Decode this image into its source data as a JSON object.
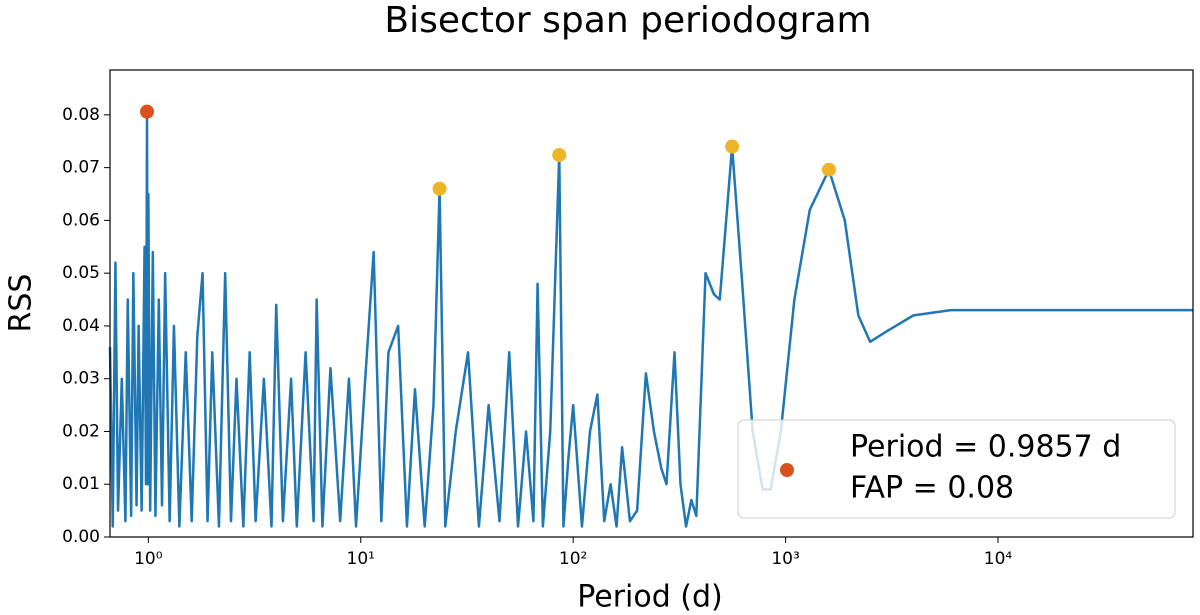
{
  "chart_data": {
    "type": "line",
    "title": "Bisector span periodogram",
    "xlabel": "Period (d)",
    "ylabel": "RSS",
    "xscale": "log",
    "xlim": [
      0.66,
      82800
    ],
    "ylim": [
      0,
      0.0885
    ],
    "xticks": [
      {
        "value": 1,
        "label": "10⁰"
      },
      {
        "value": 10,
        "label": "10¹"
      },
      {
        "value": 100,
        "label": "10²"
      },
      {
        "value": 1000,
        "label": "10³"
      },
      {
        "value": 10000,
        "label": "10⁴"
      }
    ],
    "yticks": [
      {
        "value": 0,
        "label": "0.00"
      },
      0.01,
      0.02,
      0.03,
      0.04,
      0.05,
      0.06,
      0.07,
      0.08
    ],
    "series": [
      {
        "color": "#1f77b4",
        "x": [
          0.66,
          0.68,
          0.7,
          0.72,
          0.75,
          0.78,
          0.8,
          0.83,
          0.85,
          0.88,
          0.9,
          0.93,
          0.96,
          0.975,
          0.9857,
          0.995,
          1.0,
          1.02,
          1.05,
          1.08,
          1.12,
          1.16,
          1.2,
          1.26,
          1.32,
          1.4,
          1.5,
          1.6,
          1.7,
          1.8,
          1.9,
          2.0,
          2.15,
          2.3,
          2.45,
          2.6,
          2.8,
          3.0,
          3.2,
          3.5,
          3.8,
          4.0,
          4.3,
          4.7,
          5.0,
          5.5,
          6.0,
          6.2,
          6.6,
          7.2,
          8.0,
          8.8,
          9.5,
          10.5,
          11.5,
          12.5,
          13.5,
          15,
          16.5,
          18,
          20,
          22,
          23.5,
          25,
          28,
          32,
          36,
          40,
          45,
          50,
          55,
          60,
          65,
          68,
          72,
          78,
          86,
          90,
          95,
          100,
          110,
          120,
          130,
          140,
          150,
          160,
          170,
          185,
          200,
          220,
          240,
          260,
          275,
          300,
          320,
          340,
          360,
          380,
          420,
          460,
          490,
          560,
          620,
          700,
          780,
          850,
          950,
          1100,
          1300,
          1600,
          1900,
          2200,
          2500,
          3000,
          4000,
          6000,
          10000,
          82800
        ],
        "values": [
          0.036,
          0.002,
          0.052,
          0.005,
          0.03,
          0.003,
          0.045,
          0.004,
          0.05,
          0.006,
          0.04,
          0.005,
          0.055,
          0.01,
          0.0806,
          0.01,
          0.065,
          0.005,
          0.054,
          0.004,
          0.045,
          0.006,
          0.05,
          0.003,
          0.04,
          0.002,
          0.035,
          0.003,
          0.038,
          0.05,
          0.003,
          0.035,
          0.002,
          0.05,
          0.003,
          0.03,
          0.002,
          0.035,
          0.003,
          0.03,
          0.002,
          0.044,
          0.003,
          0.03,
          0.002,
          0.035,
          0.003,
          0.045,
          0.002,
          0.032,
          0.003,
          0.03,
          0.002,
          0.03,
          0.054,
          0.003,
          0.035,
          0.04,
          0.002,
          0.028,
          0.002,
          0.025,
          0.066,
          0.002,
          0.02,
          0.035,
          0.002,
          0.025,
          0.003,
          0.035,
          0.002,
          0.02,
          0.003,
          0.048,
          0.002,
          0.02,
          0.0724,
          0.002,
          0.015,
          0.025,
          0.002,
          0.02,
          0.027,
          0.003,
          0.01,
          0.002,
          0.017,
          0.003,
          0.005,
          0.031,
          0.02,
          0.013,
          0.01,
          0.035,
          0.01,
          0.002,
          0.007,
          0.004,
          0.05,
          0.046,
          0.045,
          0.074,
          0.05,
          0.02,
          0.009,
          0.009,
          0.02,
          0.045,
          0.062,
          0.0696,
          0.06,
          0.042,
          0.037,
          0.039,
          0.042,
          0.043,
          0.043,
          0.043
        ]
      }
    ],
    "peaks": {
      "color": "#f0b429",
      "x": [
        23.5,
        86,
        560,
        1600
      ],
      "values": [
        0.066,
        0.0724,
        0.074,
        0.0696
      ]
    },
    "best_peak": {
      "name": "Period = 0.9857 d",
      "color": "#d9521d",
      "x": [
        0.9857
      ],
      "values": [
        0.0806
      ]
    },
    "annotations": [
      "FAP = 0.08"
    ],
    "legend": "lower right"
  }
}
